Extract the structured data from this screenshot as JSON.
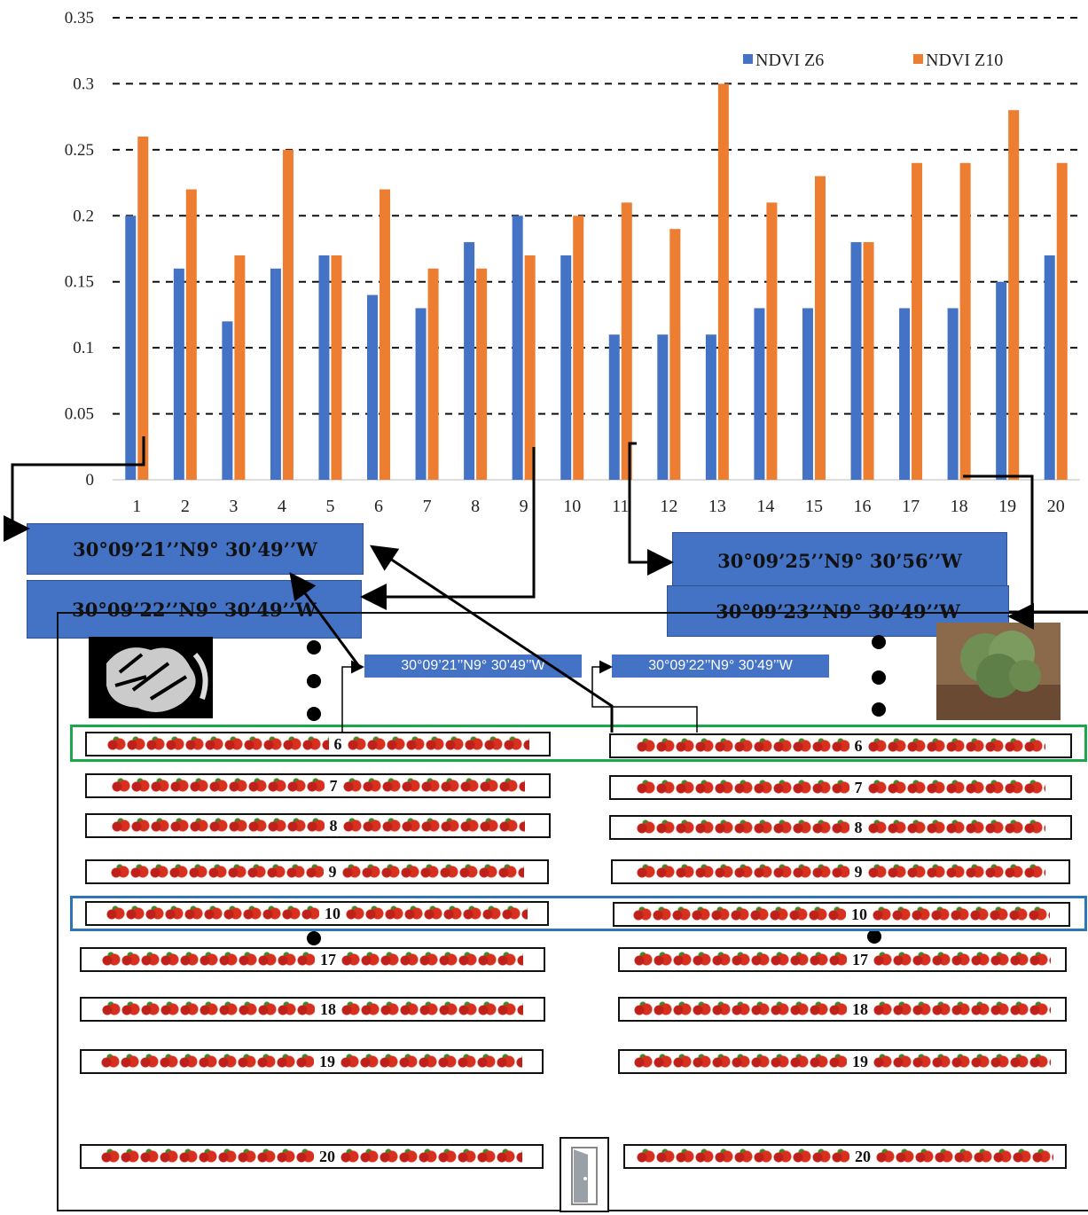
{
  "chart_data": {
    "type": "bar",
    "categories": [
      "1",
      "2",
      "3",
      "4",
      "5",
      "6",
      "7",
      "8",
      "9",
      "10",
      "11",
      "12",
      "13",
      "14",
      "15",
      "16",
      "17",
      "18",
      "19",
      "20"
    ],
    "series": [
      {
        "name": "NDVI Z6",
        "color": "#4472c4",
        "values": [
          0.2,
          0.16,
          0.12,
          0.16,
          0.17,
          0.14,
          0.13,
          0.18,
          0.2,
          0.17,
          0.11,
          0.11,
          0.11,
          0.13,
          0.13,
          0.18,
          0.13,
          0.13,
          0.15,
          0.17
        ]
      },
      {
        "name": "NDVI Z10",
        "color": "#ed7d31",
        "values": [
          0.26,
          0.22,
          0.17,
          0.25,
          0.17,
          0.22,
          0.16,
          0.16,
          0.17,
          0.2,
          0.21,
          0.19,
          0.3,
          0.21,
          0.23,
          0.18,
          0.24,
          0.24,
          0.28,
          0.24
        ]
      }
    ],
    "y_ticks": [
      "0",
      "0.05",
      "0.1",
      "0.15",
      "0.2",
      "0.25",
      "0.3",
      "0.35"
    ],
    "ylim": [
      0,
      0.35
    ],
    "grid": "dashed horizontal",
    "legend_position": "top-right"
  },
  "coordinates": {
    "left_top": "30°09’21’’N9° 30’49’’W",
    "left_bottom": "30°09’22’’N9° 30’49’’W",
    "right_top": "30°09’25’’N9° 30’56’’W",
    "right_bottom": "30°09’23’’N9° 30’49’’W",
    "small_left": "30°09’21’’N9° 30’49’’W",
    "small_right": "30°09’22’’N9° 30’49’’W"
  },
  "field": {
    "rows_left": [
      "6",
      "7",
      "8",
      "9",
      "10",
      "17",
      "18",
      "19",
      "20"
    ],
    "rows_right": [
      "6",
      "7",
      "8",
      "9",
      "10",
      "17",
      "18",
      "19",
      "20"
    ],
    "highlight_colors": {
      "row6": "#1aa84a",
      "row10": "#2e75b6"
    }
  }
}
